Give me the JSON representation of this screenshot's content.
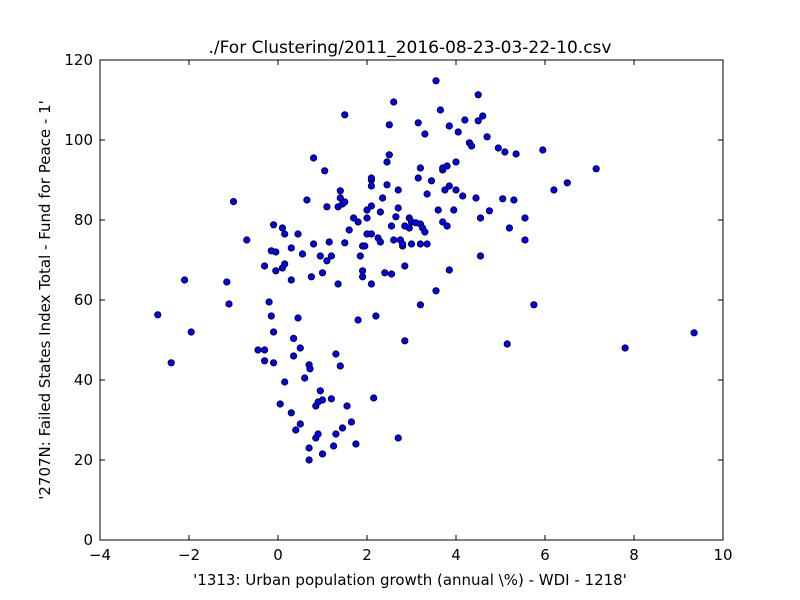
{
  "chart_data": {
    "type": "scatter",
    "title": "./For Clustering/2011_2016-08-23-03-22-10.csv",
    "xlabel": "'1313: Urban population growth  (annual \\%) - WDI - 1218'",
    "ylabel": "'2707N: Failed States Index Total - Fund for Peace - 1'",
    "xlim": [
      -4,
      10
    ],
    "ylim": [
      0,
      120
    ],
    "xticks": [
      -4,
      -2,
      0,
      2,
      4,
      6,
      8,
      10
    ],
    "yticks": [
      0,
      20,
      40,
      60,
      80,
      100,
      120
    ],
    "xtick_labels": [
      "−4",
      "−2",
      "0",
      "2",
      "4",
      "6",
      "8",
      "10"
    ],
    "ytick_labels": [
      "0",
      "20",
      "40",
      "60",
      "80",
      "100",
      "120"
    ],
    "marker_color": "#0000ff",
    "marker_edge": "#000000",
    "grid": false,
    "points": [
      [
        -2.7,
        56.3
      ],
      [
        -2.4,
        44.3
      ],
      [
        -2.1,
        65.0
      ],
      [
        -1.95,
        52.0
      ],
      [
        -1.15,
        64.5
      ],
      [
        -1.1,
        59.0
      ],
      [
        -1.0,
        84.6
      ],
      [
        -0.7,
        75.0
      ],
      [
        -0.45,
        47.5
      ],
      [
        -0.3,
        47.5
      ],
      [
        -0.3,
        68.5
      ],
      [
        -0.3,
        44.8
      ],
      [
        -0.2,
        59.5
      ],
      [
        -0.15,
        72.3
      ],
      [
        -0.15,
        56.0
      ],
      [
        -0.1,
        78.8
      ],
      [
        -0.1,
        52.0
      ],
      [
        -0.1,
        44.3
      ],
      [
        -0.05,
        72.0
      ],
      [
        -0.05,
        67.3
      ],
      [
        0.05,
        34.0
      ],
      [
        0.1,
        68.0
      ],
      [
        0.1,
        78.0
      ],
      [
        0.15,
        39.5
      ],
      [
        0.15,
        76.5
      ],
      [
        0.15,
        69.0
      ],
      [
        0.3,
        73.0
      ],
      [
        0.3,
        65.0
      ],
      [
        0.3,
        31.8
      ],
      [
        0.35,
        50.4
      ],
      [
        0.35,
        46.0
      ],
      [
        0.4,
        27.5
      ],
      [
        0.45,
        55.5
      ],
      [
        0.45,
        76.5
      ],
      [
        0.5,
        48.0
      ],
      [
        0.5,
        29.0
      ],
      [
        0.55,
        71.5
      ],
      [
        0.6,
        40.5
      ],
      [
        0.65,
        85.0
      ],
      [
        0.7,
        23.0
      ],
      [
        0.7,
        20.0
      ],
      [
        0.7,
        43.8
      ],
      [
        0.72,
        42.8
      ],
      [
        0.75,
        65.8
      ],
      [
        0.8,
        95.5
      ],
      [
        0.8,
        74.0
      ],
      [
        0.85,
        25.5
      ],
      [
        0.85,
        33.5
      ],
      [
        0.9,
        26.5
      ],
      [
        0.9,
        34.5
      ],
      [
        0.95,
        37.3
      ],
      [
        0.95,
        71.0
      ],
      [
        1.0,
        21.5
      ],
      [
        1.0,
        35.0
      ],
      [
        1.0,
        66.8
      ],
      [
        1.05,
        92.3
      ],
      [
        1.1,
        83.3
      ],
      [
        1.1,
        69.8
      ],
      [
        1.15,
        74.5
      ],
      [
        1.2,
        35.3
      ],
      [
        1.2,
        71.0
      ],
      [
        1.25,
        23.5
      ],
      [
        1.3,
        26.5
      ],
      [
        1.3,
        46.5
      ],
      [
        1.35,
        64.0
      ],
      [
        1.35,
        83.3
      ],
      [
        1.4,
        87.3
      ],
      [
        1.4,
        85.5
      ],
      [
        1.4,
        43.5
      ],
      [
        1.45,
        84.0
      ],
      [
        1.45,
        28.0
      ],
      [
        1.5,
        84.5
      ],
      [
        1.5,
        106.3
      ],
      [
        1.5,
        74.3
      ],
      [
        1.55,
        33.5
      ],
      [
        1.6,
        77.5
      ],
      [
        1.65,
        29.5
      ],
      [
        1.7,
        80.5
      ],
      [
        1.75,
        24.0
      ],
      [
        1.8,
        55.0
      ],
      [
        1.8,
        79.5
      ],
      [
        1.85,
        71.0
      ],
      [
        1.9,
        67.3
      ],
      [
        1.9,
        65.8
      ],
      [
        1.9,
        73.5
      ],
      [
        1.95,
        73.5
      ],
      [
        2.0,
        80.5
      ],
      [
        2.0,
        82.5
      ],
      [
        2.0,
        76.5
      ],
      [
        2.1,
        88.5
      ],
      [
        2.1,
        90.0
      ],
      [
        2.1,
        90.5
      ],
      [
        2.1,
        83.5
      ],
      [
        2.1,
        64.0
      ],
      [
        2.1,
        76.5
      ],
      [
        2.15,
        35.5
      ],
      [
        2.2,
        56.0
      ],
      [
        2.25,
        75.5
      ],
      [
        2.3,
        74.5
      ],
      [
        2.3,
        82.0
      ],
      [
        2.35,
        85.5
      ],
      [
        2.4,
        66.8
      ],
      [
        2.45,
        88.8
      ],
      [
        2.45,
        94.5
      ],
      [
        2.5,
        96.3
      ],
      [
        2.5,
        103.8
      ],
      [
        2.55,
        66.5
      ],
      [
        2.55,
        78.5
      ],
      [
        2.6,
        75.0
      ],
      [
        2.6,
        109.5
      ],
      [
        2.65,
        80.8
      ],
      [
        2.7,
        25.5
      ],
      [
        2.7,
        87.5
      ],
      [
        2.7,
        83.0
      ],
      [
        2.75,
        75.0
      ],
      [
        2.8,
        73.5
      ],
      [
        2.8,
        74.0
      ],
      [
        2.85,
        78.5
      ],
      [
        2.85,
        68.5
      ],
      [
        2.85,
        49.8
      ],
      [
        2.95,
        78.0
      ],
      [
        2.95,
        80.5
      ],
      [
        3.0,
        74.0
      ],
      [
        3.0,
        79.5
      ],
      [
        3.1,
        79.3
      ],
      [
        3.15,
        90.5
      ],
      [
        3.15,
        104.3
      ],
      [
        3.2,
        93.0
      ],
      [
        3.2,
        79.0
      ],
      [
        3.2,
        58.8
      ],
      [
        3.2,
        74.0
      ],
      [
        3.25,
        78.0
      ],
      [
        3.3,
        101.5
      ],
      [
        3.3,
        77.0
      ],
      [
        3.35,
        74.0
      ],
      [
        3.35,
        86.5
      ],
      [
        3.45,
        89.8
      ],
      [
        3.55,
        114.8
      ],
      [
        3.55,
        62.3
      ],
      [
        3.6,
        82.5
      ],
      [
        3.65,
        107.5
      ],
      [
        3.7,
        92.5
      ],
      [
        3.7,
        93.0
      ],
      [
        3.7,
        79.5
      ],
      [
        3.75,
        87.5
      ],
      [
        3.8,
        78.5
      ],
      [
        3.8,
        93.5
      ],
      [
        3.85,
        103.5
      ],
      [
        3.85,
        67.5
      ],
      [
        3.85,
        88.5
      ],
      [
        3.95,
        82.5
      ],
      [
        4.0,
        94.5
      ],
      [
        4.0,
        87.5
      ],
      [
        4.05,
        102.0
      ],
      [
        4.15,
        86.0
      ],
      [
        4.2,
        105.0
      ],
      [
        4.3,
        99.3
      ],
      [
        4.35,
        98.5
      ],
      [
        4.45,
        85.5
      ],
      [
        4.5,
        111.3
      ],
      [
        4.5,
        104.8
      ],
      [
        4.55,
        71.0
      ],
      [
        4.55,
        80.5
      ],
      [
        4.6,
        106.0
      ],
      [
        4.7,
        100.8
      ],
      [
        4.75,
        82.3
      ],
      [
        4.95,
        98.0
      ],
      [
        5.05,
        85.3
      ],
      [
        5.1,
        97.0
      ],
      [
        5.15,
        49.0
      ],
      [
        5.2,
        78.0
      ],
      [
        5.3,
        85.0
      ],
      [
        5.35,
        96.5
      ],
      [
        5.55,
        75.0
      ],
      [
        5.55,
        80.5
      ],
      [
        5.75,
        58.8
      ],
      [
        5.95,
        97.5
      ],
      [
        6.2,
        87.5
      ],
      [
        6.5,
        89.3
      ],
      [
        7.15,
        92.8
      ],
      [
        7.8,
        48.0
      ],
      [
        9.35,
        51.8
      ]
    ]
  }
}
